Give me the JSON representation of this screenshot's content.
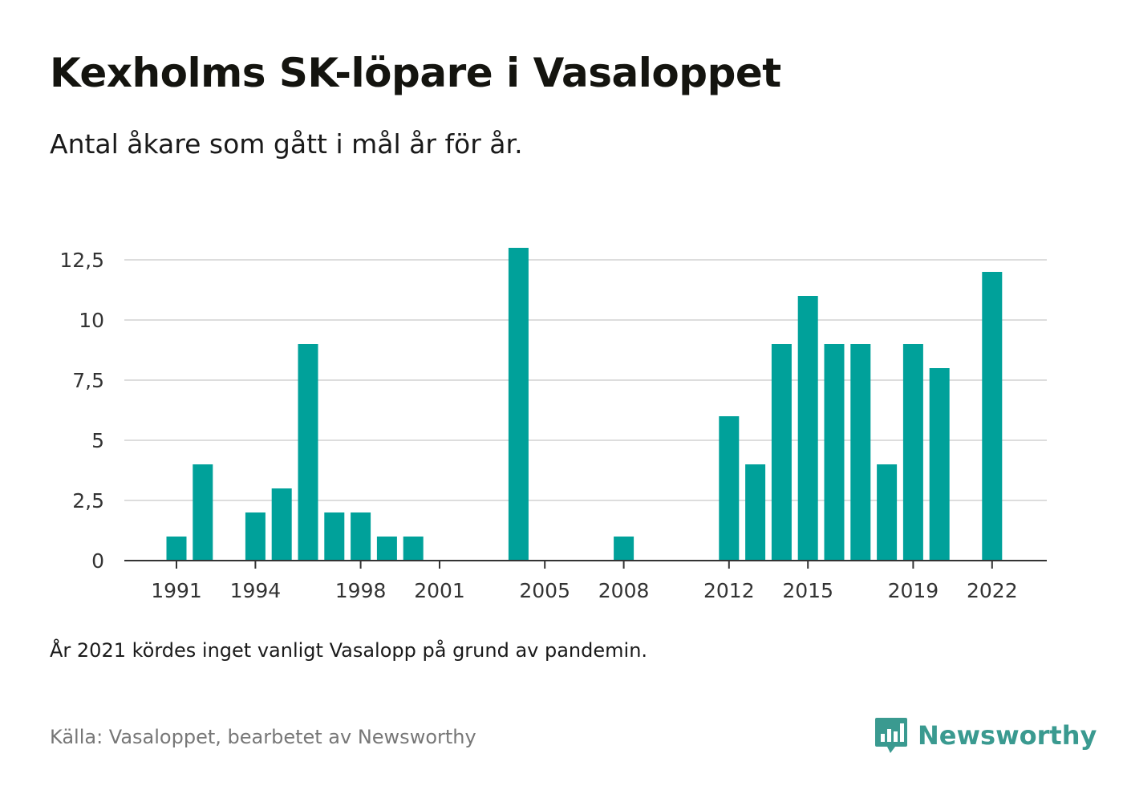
{
  "title": "Kexholms SK-löpare i Vasaloppet",
  "subtitle": "Antal åkare som gått i mål år för år.",
  "note": "År 2021 kördes inget vanligt Vasalopp på grund av pandemin.",
  "source": "Källa: Vasaloppet, bearbetet av Newsworthy",
  "brand": {
    "name": "Newsworthy",
    "icon": "newsworthy-logo-icon",
    "color": "#3a9a90"
  },
  "colors": {
    "bar": "#00a19a",
    "grid": "#dddddd",
    "axis": "#333333"
  },
  "chart_data": {
    "type": "bar",
    "x": [
      1991,
      1992,
      1993,
      1994,
      1995,
      1996,
      1997,
      1998,
      1999,
      2000,
      2001,
      2002,
      2003,
      2004,
      2005,
      2006,
      2007,
      2008,
      2009,
      2010,
      2011,
      2012,
      2013,
      2014,
      2015,
      2016,
      2017,
      2018,
      2019,
      2020,
      2021,
      2022
    ],
    "values": [
      1,
      4,
      0,
      2,
      3,
      9,
      2,
      2,
      1,
      1,
      0,
      0,
      0,
      13,
      0,
      0,
      0,
      1,
      0,
      0,
      0,
      6,
      4,
      9,
      11,
      9,
      9,
      4,
      9,
      8,
      0,
      12
    ],
    "xticks": [
      "1991",
      "1994",
      "1998",
      "2001",
      "2005",
      "2008",
      "2012",
      "2015",
      "2019",
      "2022"
    ],
    "yticks": [
      "0",
      "2,5",
      "5",
      "7,5",
      "10",
      "12,5"
    ],
    "ylim": [
      0,
      13
    ],
    "grid": true
  }
}
